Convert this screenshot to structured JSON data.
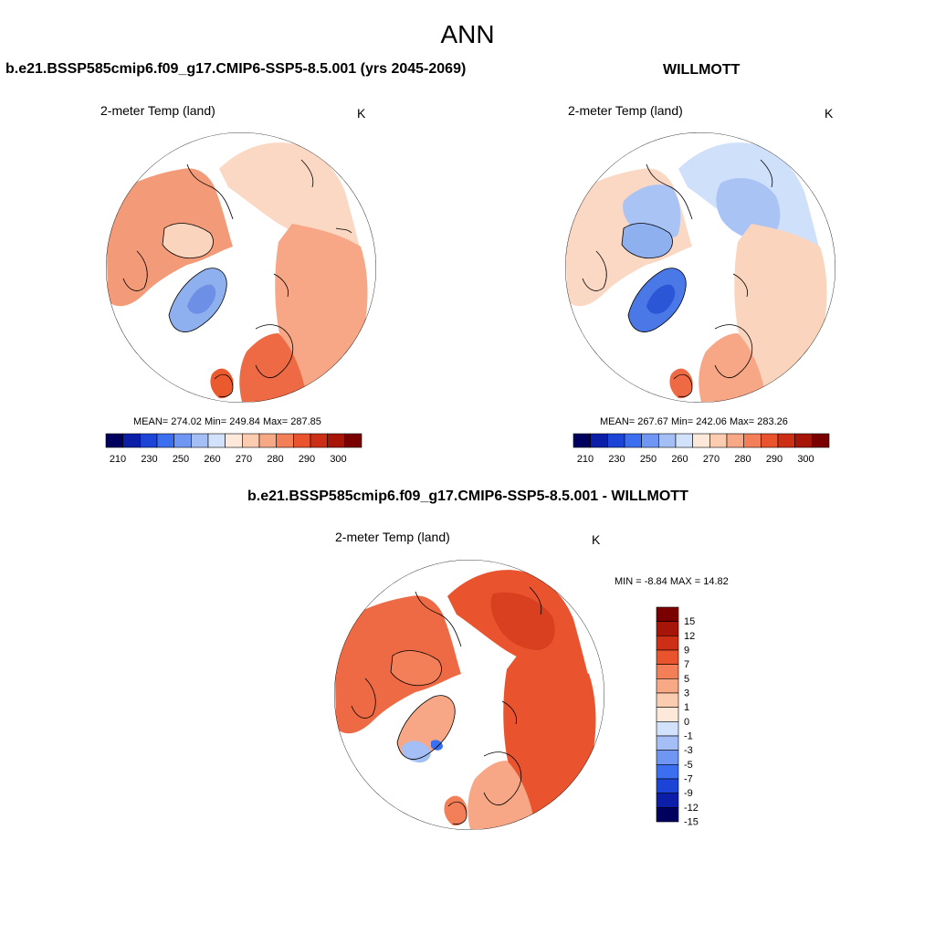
{
  "main_title": "ANN",
  "panels": [
    {
      "title": "b.e21.BSSP585cmip6.f09_g17.CMIP6-SSP5-8.5.001 (yrs 2045-2069)",
      "variable": "2-meter Temp (land)",
      "units": "K",
      "stats": {
        "mean_label": "MEAN=",
        "mean": "274.02",
        "min_label": "Min=",
        "min": "249.84",
        "max_label": "Max=",
        "max": "287.85"
      },
      "colorbar": {
        "labels": [
          "210",
          "230",
          "250",
          "260",
          "270",
          "280",
          "290",
          "300"
        ]
      }
    },
    {
      "title": "WILLMOTT",
      "variable": "2-meter Temp (land)",
      "units": "K",
      "stats": {
        "mean_label": "MEAN=",
        "mean": "267.67",
        "min_label": "Min=",
        "min": "242.06",
        "max_label": "Max=",
        "max": "283.26"
      },
      "colorbar": {
        "labels": [
          "210",
          "230",
          "250",
          "260",
          "270",
          "280",
          "290",
          "300"
        ]
      }
    },
    {
      "title": "b.e21.BSSP585cmip6.f09_g17.CMIP6-SSP5-8.5.001 - WILLMOTT",
      "variable": "2-meter Temp (land)",
      "units": "K",
      "stats": {
        "min_label": "MIN =",
        "min": "-8.84",
        "max_label": "MAX =",
        "max": "14.82"
      },
      "colorbar": {
        "labels": [
          "15",
          "12",
          "9",
          "7",
          "5",
          "3",
          "1",
          "0",
          "-1",
          "-3",
          "-5",
          "-7",
          "-9",
          "-12",
          "-15"
        ]
      }
    }
  ],
  "colors": {
    "abs_scale": [
      "#00005f",
      "#0a1ea8",
      "#1c45d8",
      "#3c6ef0",
      "#6e96f2",
      "#a4bff6",
      "#d2e2fb",
      "#fde8da",
      "#fbccb0",
      "#f7a884",
      "#f27f58",
      "#e9542f",
      "#cd2e16",
      "#a71408",
      "#7a0000"
    ],
    "diff_scale": [
      "#7a0000",
      "#a71408",
      "#cd2e16",
      "#e9542f",
      "#f27f58",
      "#f7a884",
      "#fbccb0",
      "#fde8da",
      "#d2e2fb",
      "#a4bff6",
      "#6e96f2",
      "#3c6ef0",
      "#1c45d8",
      "#0a1ea8",
      "#00005f"
    ]
  }
}
